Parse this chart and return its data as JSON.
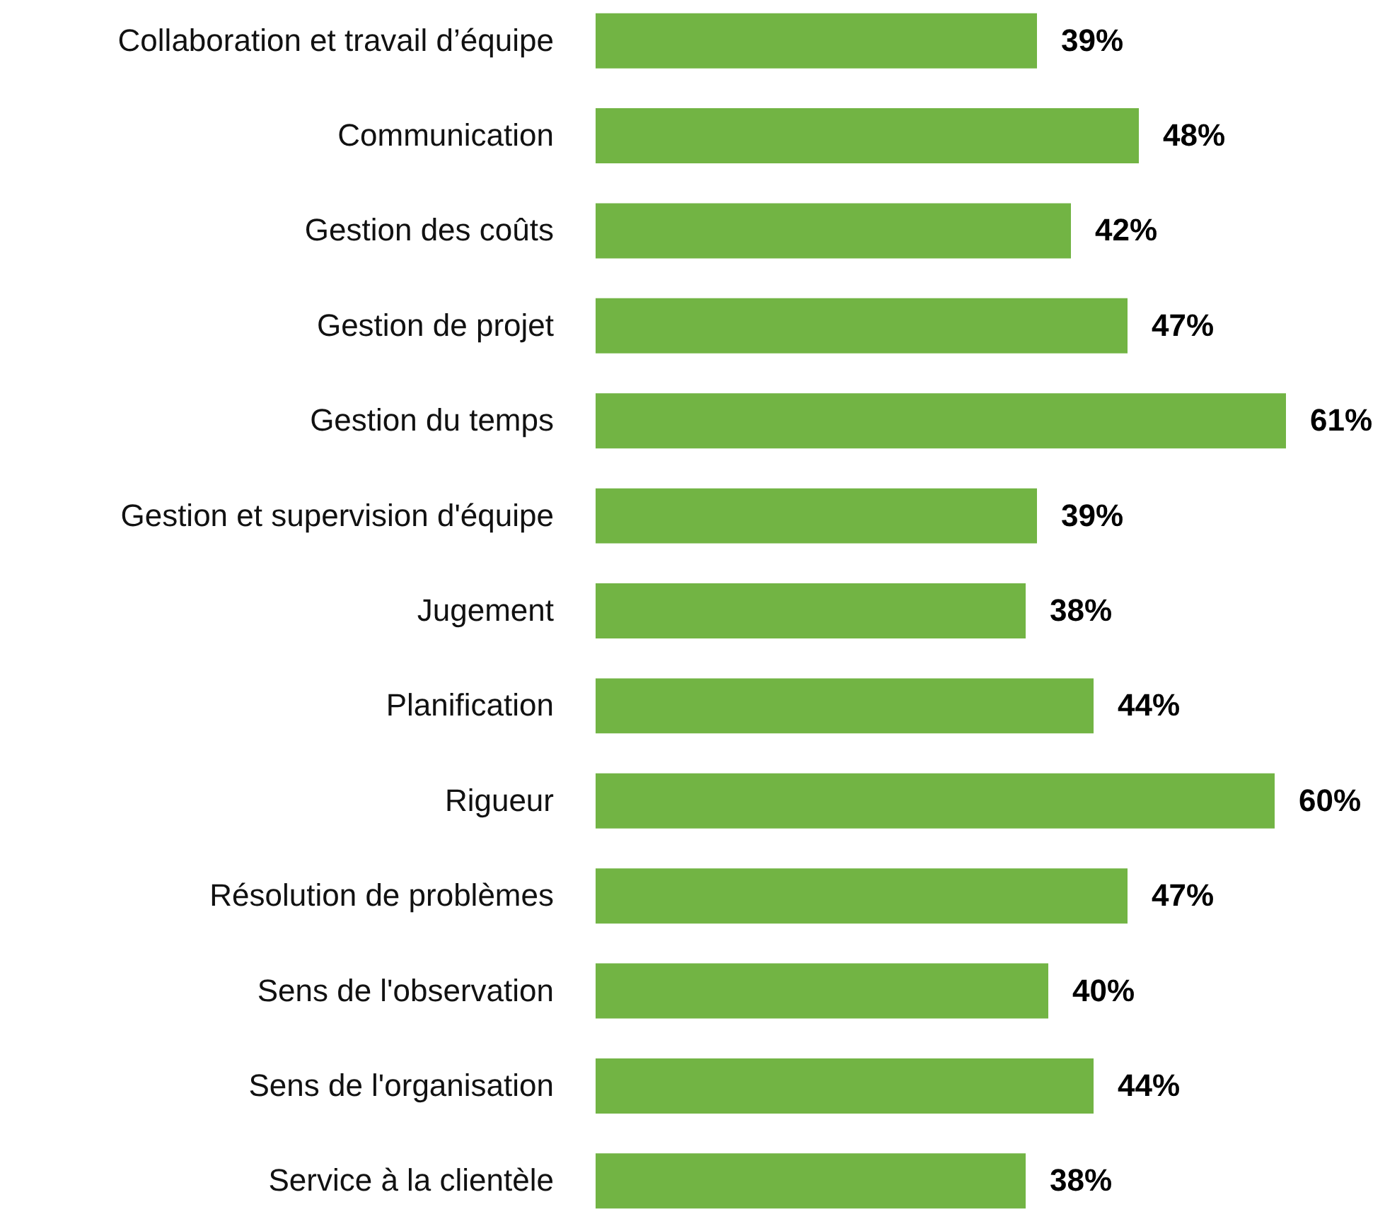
{
  "chart_data": {
    "type": "bar",
    "orientation": "horizontal",
    "categories": [
      "Collaboration et travail d’équipe",
      "Communication",
      "Gestion des coûts",
      "Gestion de projet",
      "Gestion du temps",
      "Gestion et supervision d'équipe",
      "Jugement",
      "Planification",
      "Rigueur",
      "Résolution de problèmes",
      "Sens de l'observation",
      "Sens de l'organisation",
      "Service à la clientèle"
    ],
    "values": [
      39,
      48,
      42,
      47,
      61,
      39,
      38,
      44,
      60,
      47,
      40,
      44,
      38
    ],
    "value_labels": [
      "39%",
      "48%",
      "42%",
      "47%",
      "61%",
      "39%",
      "38%",
      "44%",
      "60%",
      "47%",
      "40%",
      "44%",
      "38%"
    ],
    "color": "#72b444",
    "tick_labels": "y"
  }
}
